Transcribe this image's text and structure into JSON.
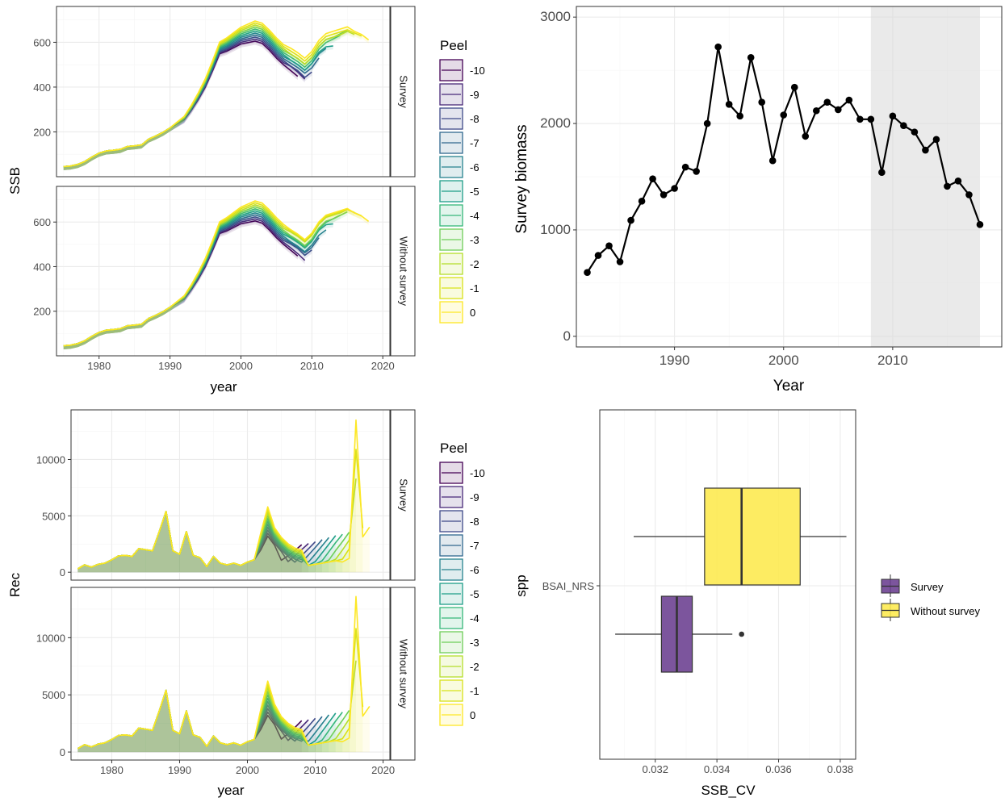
{
  "chart_data": [
    {
      "id": "ssb",
      "type": "line",
      "ylabel": "SSB",
      "xlabel": "year",
      "facets": [
        "Survey",
        "Without survey"
      ],
      "xlim": [
        1974,
        2021
      ],
      "xticks": [
        1980,
        1990,
        2000,
        2010,
        2020
      ],
      "ylim": [
        0,
        760
      ],
      "yticks": [
        200,
        400,
        600
      ],
      "legend": {
        "title": "Peel",
        "placement": "right",
        "entries": [
          "-10",
          "-9",
          "-8",
          "-7",
          "-6",
          "-5",
          "-4",
          "-3",
          "-2",
          "-1",
          "0"
        ]
      },
      "base_series": {
        "x": [
          1975,
          1976,
          1977,
          1978,
          1979,
          1980,
          1981,
          1982,
          1983,
          1984,
          1985,
          1986,
          1987,
          1988,
          1989,
          1990,
          1991,
          1992,
          1993,
          1994,
          1995,
          1996,
          1997,
          1998,
          1999,
          2000,
          2001,
          2002,
          2003,
          2004,
          2005,
          2006,
          2007,
          2008,
          2009,
          2010,
          2011,
          2012,
          2013,
          2014,
          2015,
          2016,
          2017,
          2018
        ],
        "y": [
          45,
          48,
          55,
          68,
          88,
          105,
          115,
          118,
          122,
          135,
          138,
          142,
          168,
          182,
          198,
          218,
          240,
          262,
          308,
          360,
          420,
          495,
          575,
          590,
          610,
          630,
          640,
          650,
          640,
          610,
          575,
          545,
          525,
          505,
          480,
          510,
          560,
          590,
          600,
          610,
          620,
          600,
          580,
          550
        ]
      }
    },
    {
      "id": "survey",
      "type": "line",
      "ylabel": "Survey biomass",
      "xlabel": "Year",
      "xlim": [
        1981,
        2020
      ],
      "xticks": [
        1990,
        2000,
        2010
      ],
      "ylim": [
        -100,
        3100
      ],
      "yticks": [
        0,
        1000,
        2000,
        3000
      ],
      "shaded_range": [
        2008,
        2018
      ],
      "x": [
        1982,
        1983,
        1984,
        1985,
        1986,
        1987,
        1988,
        1989,
        1990,
        1991,
        1992,
        1993,
        1994,
        1995,
        1996,
        1997,
        1998,
        1999,
        2000,
        2001,
        2002,
        2003,
        2004,
        2005,
        2006,
        2007,
        2008,
        2009,
        2010,
        2011,
        2012,
        2013,
        2014,
        2015,
        2016,
        2017,
        2018
      ],
      "y": [
        600,
        760,
        850,
        700,
        1090,
        1270,
        1480,
        1330,
        1390,
        1590,
        1550,
        2000,
        2720,
        2180,
        2070,
        2620,
        2200,
        1650,
        2080,
        2340,
        1880,
        2120,
        2200,
        2130,
        2220,
        2040,
        2040,
        1540,
        2070,
        1980,
        1920,
        1750,
        1850,
        1410,
        1460,
        1330,
        1050
      ]
    },
    {
      "id": "rec",
      "type": "line",
      "ylabel": "Rec",
      "xlabel": "year",
      "facets": [
        "Survey",
        "Without survey"
      ],
      "xlim": [
        1974,
        2021
      ],
      "xticks": [
        1980,
        1990,
        2000,
        2010,
        2020
      ],
      "ylim": [
        -700,
        14400
      ],
      "yticks": [
        0,
        5000,
        10000
      ],
      "legend": {
        "title": "Peel",
        "placement": "right",
        "entries": [
          "-10",
          "-9",
          "-8",
          "-7",
          "-6",
          "-5",
          "-4",
          "-3",
          "-2",
          "-1",
          "0"
        ]
      },
      "base_series": {
        "x": [
          1975,
          1976,
          1977,
          1978,
          1979,
          1980,
          1981,
          1982,
          1983,
          1984,
          1985,
          1986,
          1987,
          1988,
          1989,
          1990,
          1991,
          1992,
          1993,
          1994,
          1995,
          1996,
          1997,
          1998,
          1999,
          2000,
          2001,
          2002,
          2003,
          2004,
          2005,
          2006,
          2007,
          2008,
          2009,
          2010,
          2011,
          2012,
          2013,
          2014,
          2015,
          2016,
          2017,
          2018
        ],
        "y": [
          300,
          650,
          450,
          700,
          800,
          1100,
          1450,
          1500,
          1400,
          2100,
          2000,
          1900,
          3600,
          5400,
          1900,
          1600,
          3600,
          1500,
          1300,
          500,
          1400,
          800,
          650,
          800,
          600,
          900,
          1100,
          2000,
          3200,
          2400,
          1700,
          1200,
          900,
          800,
          600,
          700,
          800,
          900,
          1000,
          900,
          1000,
          8000,
          1200,
          1000
        ]
      }
    },
    {
      "id": "cv",
      "type": "box",
      "ylabel": "spp",
      "xlabel": "SSB_CV",
      "category": "BSAI_NRS",
      "xlim": [
        0.0302,
        0.0385
      ],
      "xticks": [
        0.032,
        0.034,
        0.036,
        0.038
      ],
      "xtick_labels": [
        "0.032",
        "0.034",
        "0.036",
        "0.038"
      ],
      "legend": {
        "placement": "right",
        "entries": [
          "Survey",
          "Without survey"
        ]
      },
      "boxes": [
        {
          "name": "Survey",
          "color": "#6a3d8f",
          "whisker_low": 0.0307,
          "q1": 0.0322,
          "median": 0.0327,
          "q3": 0.0332,
          "whisker_high": 0.0345,
          "outliers": [
            0.0348
          ]
        },
        {
          "name": "Without survey",
          "color": "#fde94c",
          "whisker_low": 0.0313,
          "q1": 0.0336,
          "median": 0.0348,
          "q3": 0.0367,
          "whisker_high": 0.0382,
          "outliers": []
        }
      ]
    }
  ]
}
